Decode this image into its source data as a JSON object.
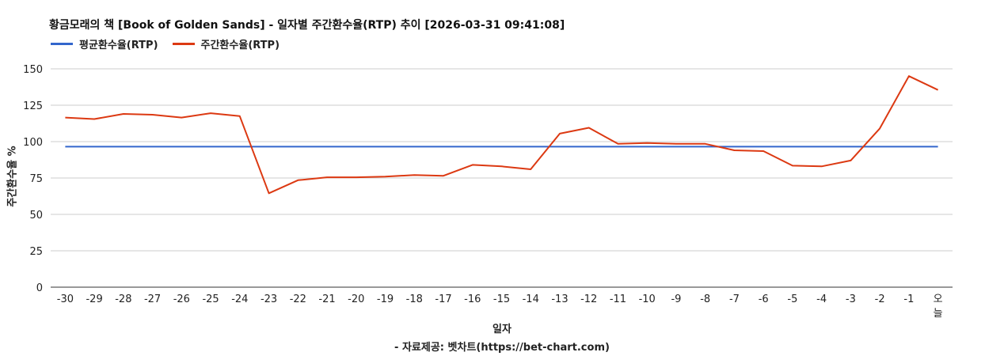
{
  "title": "황금모래의 책 [Book of Golden Sands] - 일자별 주간환수율(RTP) 추이 [2026-03-31 09:41:08]",
  "legend": [
    {
      "label": "평균환수율(RTP)",
      "color": "#3366cc"
    },
    {
      "label": "주간환수율(RTP)",
      "color": "#dc3912"
    }
  ],
  "footer": "- 자료제공: 벳차트(https://bet-chart.com)",
  "chart_data": {
    "type": "line",
    "title": "황금모래의 책 [Book of Golden Sands] - 일자별 주간환수율(RTP) 추이 [2026-03-31 09:41:08]",
    "xlabel": "일자",
    "ylabel": "주간환수율 %",
    "ylim": [
      0,
      150
    ],
    "yticks": [
      0,
      25,
      50,
      75,
      100,
      125,
      150
    ],
    "grid": true,
    "legend_position": "top-left",
    "categories": [
      "-30",
      "-29",
      "-28",
      "-27",
      "-26",
      "-25",
      "-24",
      "-23",
      "-22",
      "-21",
      "-20",
      "-19",
      "-18",
      "-17",
      "-16",
      "-15",
      "-14",
      "-13",
      "-12",
      "-11",
      "-10",
      "-9",
      "-8",
      "-7",
      "-6",
      "-5",
      "-4",
      "-3",
      "-2",
      "-1",
      "오늘"
    ],
    "series": [
      {
        "name": "평균환수율(RTP)",
        "color": "#3366cc",
        "values": [
          96.5,
          96.5,
          96.5,
          96.5,
          96.5,
          96.5,
          96.5,
          96.5,
          96.5,
          96.5,
          96.5,
          96.5,
          96.5,
          96.5,
          96.5,
          96.5,
          96.5,
          96.5,
          96.5,
          96.5,
          96.5,
          96.5,
          96.5,
          96.5,
          96.5,
          96.5,
          96.5,
          96.5,
          96.5,
          96.5,
          96.5
        ]
      },
      {
        "name": "주간환수율(RTP)",
        "color": "#dc3912",
        "values": [
          116.5,
          115.5,
          119,
          118.5,
          116.5,
          119.5,
          117.5,
          64.5,
          73.5,
          75.5,
          75.5,
          76,
          77,
          76.5,
          84,
          83,
          81,
          105.5,
          109.5,
          98.5,
          99,
          98.5,
          98.5,
          94,
          93.5,
          83.5,
          83,
          87,
          109,
          145,
          135.5
        ]
      }
    ]
  }
}
